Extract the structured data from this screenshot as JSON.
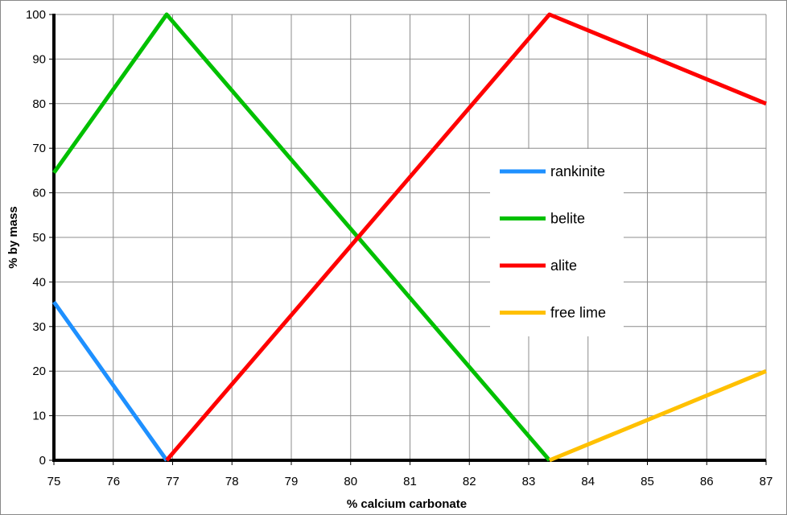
{
  "chart_data": {
    "type": "line",
    "title": "",
    "xlabel": "% calcium carbonate",
    "ylabel": "% by mass",
    "xlim": [
      75,
      87
    ],
    "ylim": [
      0,
      100
    ],
    "x_ticks": [
      "75",
      "76",
      "77",
      "78",
      "79",
      "80",
      "81",
      "82",
      "83",
      "84",
      "85",
      "86",
      "87"
    ],
    "y_ticks": [
      "0",
      "10",
      "20",
      "30",
      "40",
      "50",
      "60",
      "70",
      "80",
      "90",
      "100"
    ],
    "grid": true,
    "legend_position": "right",
    "series": [
      {
        "name": "rankinite",
        "color": "#1e90ff",
        "points": [
          [
            75,
            35.5
          ],
          [
            76.9,
            0
          ]
        ]
      },
      {
        "name": "belite",
        "color": "#00c000",
        "points": [
          [
            75,
            64.5
          ],
          [
            76.9,
            100
          ],
          [
            83.35,
            0
          ]
        ]
      },
      {
        "name": "alite",
        "color": "#ff0000",
        "points": [
          [
            76.9,
            0
          ],
          [
            83.35,
            100
          ],
          [
            87,
            80
          ]
        ]
      },
      {
        "name": "free lime",
        "color": "#ffc000",
        "points": [
          [
            83.35,
            0
          ],
          [
            87,
            20
          ]
        ]
      }
    ]
  }
}
